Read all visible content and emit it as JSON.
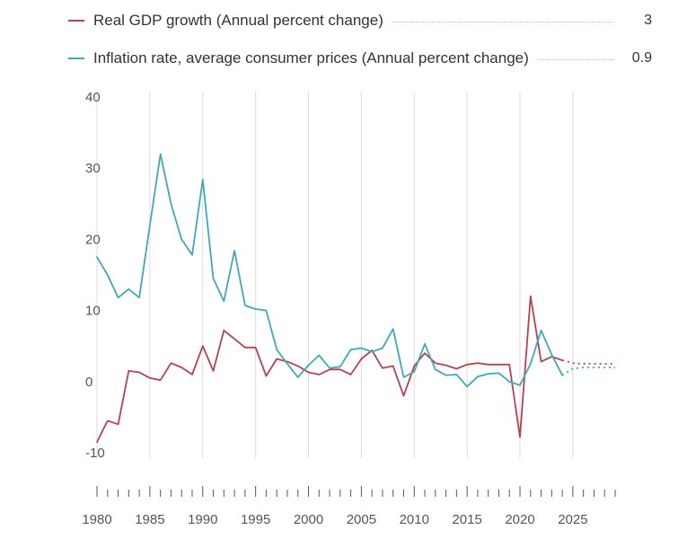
{
  "chart_data": {
    "type": "line",
    "title": "",
    "xlabel": "",
    "ylabel": "",
    "xlim": [
      1980,
      2029
    ],
    "ylim": [
      -10,
      40
    ],
    "y_ticks": [
      40,
      30,
      20,
      10,
      0,
      -10
    ],
    "x_ticks": [
      1980,
      1985,
      1990,
      1995,
      2000,
      2005,
      2010,
      2015,
      2020,
      2025
    ],
    "grid": "vertical",
    "legend_position": "top",
    "series": [
      {
        "name": "Real GDP growth (Annual percent change)",
        "color": "#b5434f",
        "latest_value": "3",
        "x": [
          1980,
          1981,
          1982,
          1983,
          1984,
          1985,
          1986,
          1987,
          1988,
          1989,
          1990,
          1991,
          1992,
          1993,
          1994,
          1995,
          1996,
          1997,
          1998,
          1999,
          2000,
          2001,
          2002,
          2003,
          2004,
          2005,
          2006,
          2007,
          2008,
          2009,
          2010,
          2011,
          2012,
          2013,
          2014,
          2015,
          2016,
          2017,
          2018,
          2019,
          2020,
          2021,
          2022,
          2023,
          2024
        ],
        "values": [
          -8.5,
          -5.5,
          -6,
          1.5,
          1.3,
          0.5,
          0.2,
          2.6,
          2,
          1,
          5,
          1.5,
          7.2,
          6,
          4.8,
          4.8,
          0.8,
          3.2,
          2.8,
          2.2,
          1.3,
          1,
          1.7,
          1.7,
          1,
          3.2,
          4.4,
          1.9,
          2.2,
          -2,
          2.2,
          4,
          2.6,
          2.3,
          1.8,
          2.4,
          2.6,
          2.4,
          2.4,
          2.4,
          -7.8,
          12,
          2.8,
          3.5,
          3
        ],
        "projection_x": [
          2024,
          2025,
          2026,
          2027,
          2028,
          2029
        ],
        "projection_values": [
          3,
          2.6,
          2.5,
          2.5,
          2.5,
          2.5
        ]
      },
      {
        "name": "Inflation rate, average consumer prices (Annual percent change)",
        "color": "#3fa9b8",
        "latest_value": "0.9",
        "x": [
          1980,
          1981,
          1982,
          1983,
          1984,
          1985,
          1986,
          1987,
          1988,
          1989,
          1990,
          1991,
          1992,
          1993,
          1994,
          1995,
          1996,
          1997,
          1998,
          1999,
          2000,
          2001,
          2002,
          2003,
          2004,
          2005,
          2006,
          2007,
          2008,
          2009,
          2010,
          2011,
          2012,
          2013,
          2014,
          2015,
          2016,
          2017,
          2018,
          2019,
          2020,
          2021,
          2022,
          2023,
          2024
        ],
        "values": [
          17.5,
          15,
          11.8,
          13,
          11.8,
          22,
          32,
          25,
          20,
          17.8,
          28.4,
          14.5,
          11.3,
          18.4,
          10.7,
          10.2,
          10,
          4.5,
          2.5,
          0.6,
          2.3,
          3.7,
          1.9,
          2.1,
          4.5,
          4.7,
          4.2,
          4.7,
          7.4,
          0.6,
          1.4,
          5.3,
          1.7,
          0.9,
          1,
          -0.7,
          0.7,
          1.1,
          1.2,
          0,
          -0.5,
          2.5,
          7.2,
          3.8,
          0.9
        ],
        "projection_x": [
          2024,
          2025,
          2026,
          2027,
          2028,
          2029
        ],
        "projection_values": [
          0.9,
          1.8,
          2,
          2,
          2,
          2
        ]
      }
    ]
  }
}
